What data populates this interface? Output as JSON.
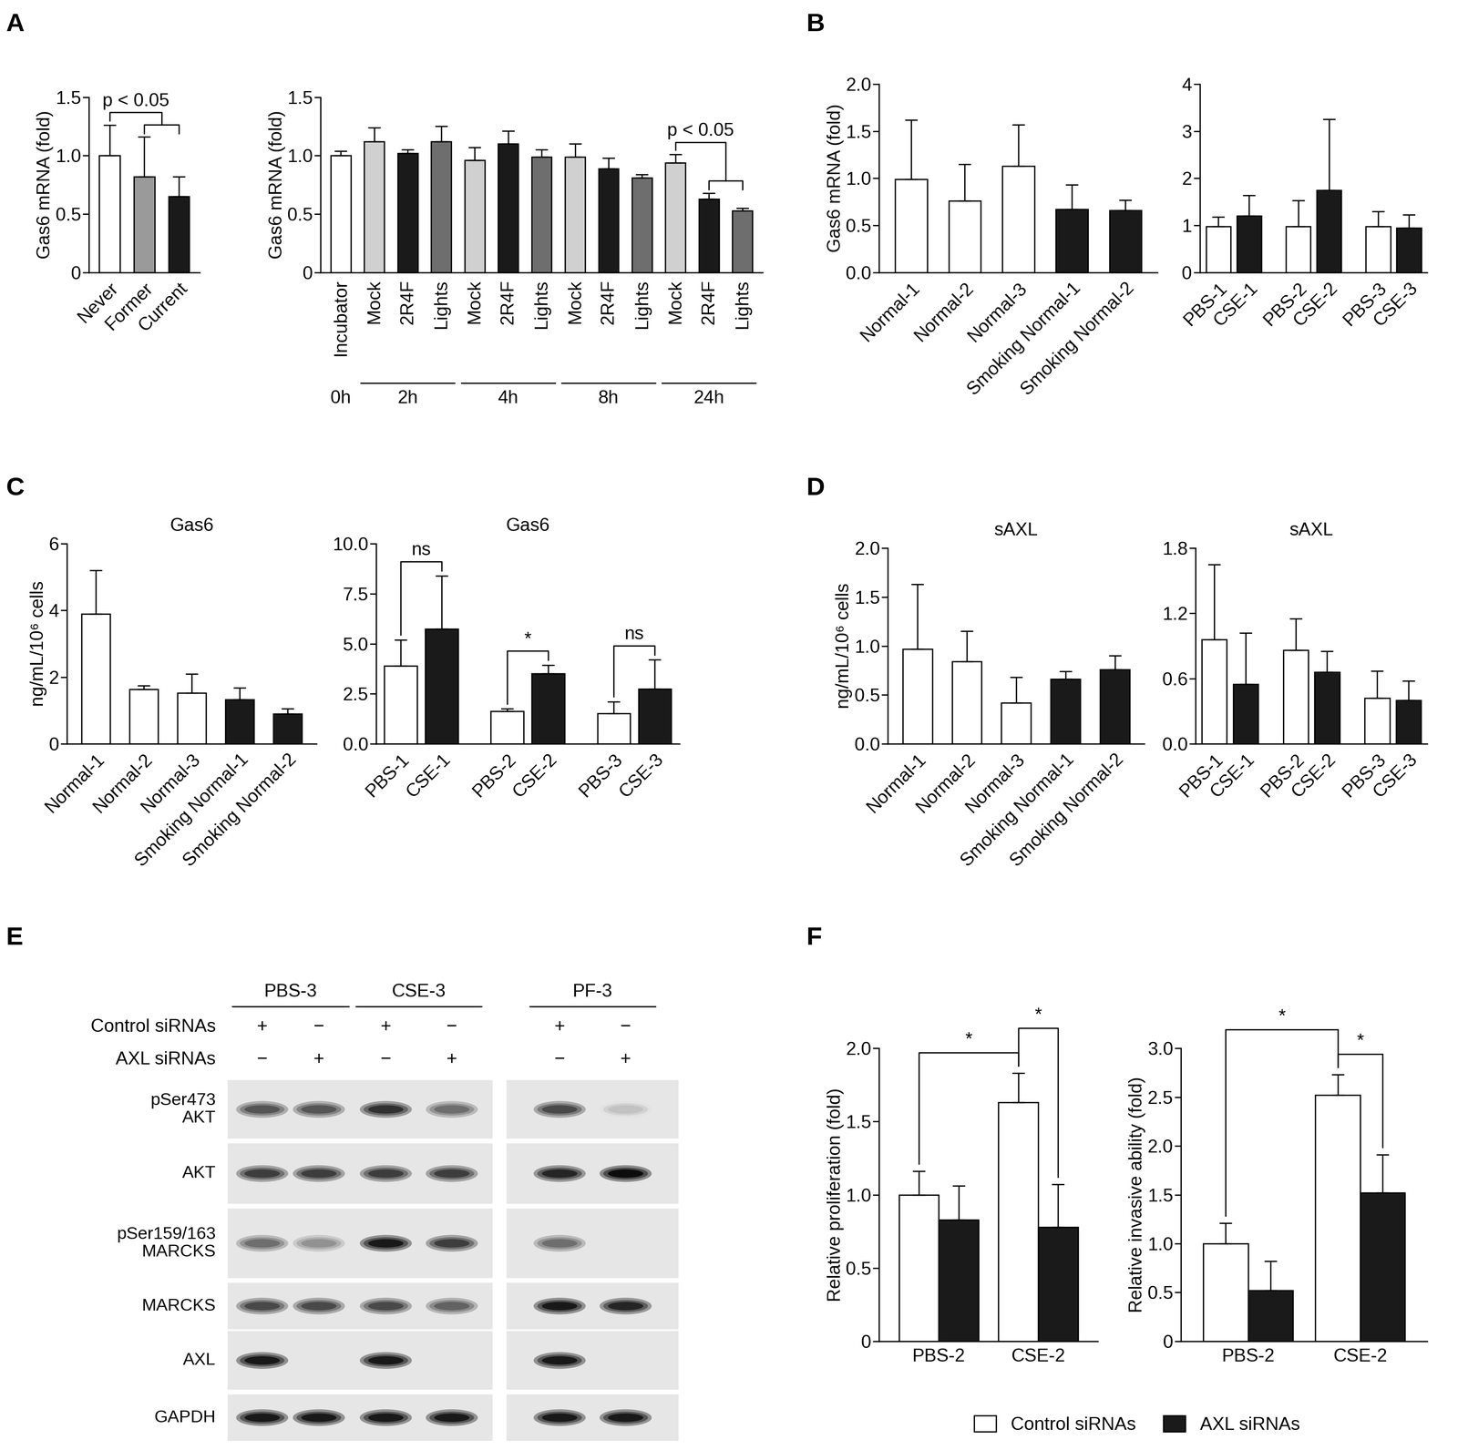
{
  "chart_data": [
    {
      "panel_label": "A",
      "type": "bar",
      "ylabel": "Gas6 mRNA (fold)",
      "categories": [
        "Never",
        "Former",
        "Current"
      ],
      "values": [
        1.0,
        0.82,
        0.65
      ],
      "errors": [
        0.26,
        0.34,
        0.17
      ],
      "colors": [
        "#ffffff",
        "#9a9a9a",
        "#1a1a1a"
      ],
      "ylim": [
        0,
        1.5
      ],
      "yticks": [
        0,
        0.5,
        {
          "value": 1,
          "label": "1.0"
        },
        1.5
      ],
      "comparisons": [
        {
          "text": "p < 0.05",
          "left": [
            0
          ],
          "right": [
            1,
            2
          ]
        }
      ]
    },
    {
      "type": "bar",
      "ylabel": "Gas6 mRNA (fold)",
      "categories": [
        "Incubator",
        "Mock",
        "2R4F",
        "Lights",
        "Mock",
        "2R4F",
        "Lights",
        "Mock",
        "2R4F",
        "Lights",
        "Mock",
        "2R4F",
        "Lights"
      ],
      "values": [
        1.0,
        1.12,
        1.02,
        1.12,
        0.96,
        1.1,
        0.99,
        0.99,
        0.89,
        0.81,
        0.94,
        0.63,
        0.53
      ],
      "errors": [
        0.04,
        0.12,
        0.03,
        0.13,
        0.11,
        0.11,
        0.06,
        0.11,
        0.09,
        0.03,
        0.07,
        0.05,
        0.02
      ],
      "colors": [
        "#ffffff",
        "#d0d0d0",
        "#1a1a1a",
        "#6e6e6e",
        "#d0d0d0",
        "#1a1a1a",
        "#6e6e6e",
        "#d0d0d0",
        "#1a1a1a",
        "#6e6e6e",
        "#d0d0d0",
        "#1a1a1a",
        "#6e6e6e"
      ],
      "groups": [
        {
          "label": "0h",
          "members": [
            0
          ]
        },
        {
          "label": "2h",
          "members": [
            1,
            2,
            3
          ]
        },
        {
          "label": "4h",
          "members": [
            4,
            5,
            6
          ]
        },
        {
          "label": "8h",
          "members": [
            7,
            8,
            9
          ]
        },
        {
          "label": "24h",
          "members": [
            10,
            11,
            12
          ]
        }
      ],
      "ylim": [
        0,
        1.5
      ],
      "yticks": [
        0,
        0.5,
        {
          "value": 1,
          "label": "1.0"
        },
        1.5
      ],
      "comparisons": [
        {
          "text": "p < 0.05",
          "left": [
            10
          ],
          "right": [
            11,
            12
          ]
        }
      ]
    },
    {
      "panel_label": "B",
      "type": "bar",
      "ylabel": "Gas6 mRNA (fold)",
      "categories": [
        "Normal-1",
        "Normal-2",
        "Normal-3",
        "Smoking Normal-1",
        "Smoking Normal-2"
      ],
      "values": [
        0.99,
        0.76,
        1.13,
        0.67,
        0.66
      ],
      "errors": [
        0.63,
        0.39,
        0.44,
        0.26,
        0.11
      ],
      "colors": [
        "#ffffff",
        "#ffffff",
        "#ffffff",
        "#1a1a1a",
        "#1a1a1a"
      ],
      "ylim": [
        0,
        2
      ],
      "yticks": [
        {
          "value": 0,
          "label": "0.0"
        },
        0.5,
        {
          "value": 1,
          "label": "1.0"
        },
        1.5,
        {
          "value": 2,
          "label": "2.0"
        }
      ]
    },
    {
      "type": "bar",
      "categories": [
        "PBS-1",
        "CSE-1",
        "PBS-2",
        "CSE-2",
        "PBS-3",
        "CSE-3"
      ],
      "values": [
        0.98,
        1.2,
        0.98,
        1.75,
        0.98,
        0.95
      ],
      "errors": [
        0.2,
        0.44,
        0.55,
        1.5,
        0.32,
        0.28
      ],
      "colors": [
        "#ffffff",
        "#1a1a1a",
        "#ffffff",
        "#1a1a1a",
        "#ffffff",
        "#1a1a1a"
      ],
      "ylim": [
        0,
        4
      ],
      "yticks": [
        0,
        1,
        2,
        3,
        4
      ]
    },
    {
      "panel_label": "C",
      "type": "bar",
      "title": "Gas6",
      "ylabel": "ng/mL/10⁶ cells",
      "categories": [
        "Normal-1",
        "Normal-2",
        "Normal-3",
        "Smoking Normal-1",
        "Smoking Normal-2"
      ],
      "values": [
        3.9,
        1.63,
        1.52,
        1.33,
        0.9
      ],
      "errors": [
        1.3,
        0.12,
        0.58,
        0.35,
        0.15
      ],
      "colors": [
        "#ffffff",
        "#ffffff",
        "#ffffff",
        "#1a1a1a",
        "#1a1a1a"
      ],
      "ylim": [
        0,
        6
      ],
      "yticks": [
        0,
        2,
        4,
        6
      ]
    },
    {
      "type": "bar",
      "title": "Gas6",
      "categories": [
        "PBS-1",
        "CSE-1",
        "PBS-2",
        "CSE-2",
        "PBS-3",
        "CSE-3"
      ],
      "values": [
        3.9,
        5.75,
        1.63,
        3.52,
        1.52,
        2.75
      ],
      "errors": [
        1.3,
        2.65,
        0.12,
        0.42,
        0.58,
        1.45
      ],
      "colors": [
        "#ffffff",
        "#1a1a1a",
        "#ffffff",
        "#1a1a1a",
        "#ffffff",
        "#1a1a1a"
      ],
      "ylim": [
        0,
        10
      ],
      "yticks": [
        {
          "value": 0,
          "label": "0.0"
        },
        2.5,
        {
          "value": 5,
          "label": "5.0"
        },
        7.5,
        {
          "value": 10,
          "label": "10.0"
        }
      ],
      "comparisons": [
        {
          "text": "ns",
          "left": [
            0
          ],
          "right": [
            1
          ]
        },
        {
          "text": "*",
          "left": [
            2
          ],
          "right": [
            3
          ]
        },
        {
          "text": "ns",
          "left": [
            4
          ],
          "right": [
            5
          ]
        }
      ]
    },
    {
      "panel_label": "D",
      "type": "bar",
      "title": "sAXL",
      "ylabel": "ng/mL/10⁶ cells",
      "categories": [
        "Normal-1",
        "Normal-2",
        "Normal-3",
        "Smoking Normal-1",
        "Smoking Normal-2"
      ],
      "values": [
        0.97,
        0.84,
        0.42,
        0.66,
        0.76
      ],
      "errors": [
        0.66,
        0.31,
        0.26,
        0.08,
        0.14
      ],
      "colors": [
        "#ffffff",
        "#ffffff",
        "#ffffff",
        "#1a1a1a",
        "#1a1a1a"
      ],
      "ylim": [
        0,
        2
      ],
      "yticks": [
        {
          "value": 0,
          "label": "0.0"
        },
        0.5,
        {
          "value": 1,
          "label": "1.0"
        },
        1.5,
        {
          "value": 2,
          "label": "2.0"
        }
      ]
    },
    {
      "type": "bar",
      "title": "sAXL",
      "categories": [
        "PBS-1",
        "CSE-1",
        "PBS-2",
        "CSE-2",
        "PBS-3",
        "CSE-3"
      ],
      "values": [
        0.96,
        0.55,
        0.86,
        0.66,
        0.42,
        0.4
      ],
      "errors": [
        0.69,
        0.47,
        0.29,
        0.19,
        0.25,
        0.18
      ],
      "colors": [
        "#ffffff",
        "#1a1a1a",
        "#ffffff",
        "#1a1a1a",
        "#ffffff",
        "#1a1a1a"
      ],
      "ylim": [
        0,
        1.8
      ],
      "yticks": [
        {
          "value": 0,
          "label": "0.0"
        },
        0.6,
        1.2,
        1.8
      ]
    },
    {
      "panel_label": "F",
      "type": "bar",
      "ylabel": "Relative proliferation (fold)",
      "categories": [
        "PBS-2",
        "CSE-2"
      ],
      "series": [
        {
          "name": "Control siRNAs",
          "color": "#ffffff",
          "values": [
            1.0,
            1.63
          ],
          "errors": [
            0.16,
            0.2
          ]
        },
        {
          "name": "AXL siRNAs",
          "color": "#1a1a1a",
          "values": [
            0.83,
            0.78
          ],
          "errors": [
            0.23,
            0.29
          ]
        }
      ],
      "ylim": [
        0,
        2
      ],
      "yticks": [
        0,
        0.5,
        {
          "value": 1,
          "label": "1.0"
        },
        1.5,
        {
          "value": 2,
          "label": "2.0"
        }
      ],
      "comparisons": [
        {
          "text": "*",
          "left": [
            {
              "series": 0,
              "category": 0
            }
          ],
          "right": [
            {
              "series": 0,
              "category": 1
            }
          ]
        },
        {
          "text": "*",
          "left": [
            {
              "series": 0,
              "category": 1
            }
          ],
          "right": [
            {
              "series": 1,
              "category": 1
            }
          ]
        }
      ]
    },
    {
      "type": "bar",
      "ylabel": "Relative invasive ability (fold)",
      "categories": [
        "PBS-2",
        "CSE-2"
      ],
      "series": [
        {
          "name": "Control siRNAs",
          "color": "#ffffff",
          "values": [
            1.0,
            2.52
          ],
          "errors": [
            0.21,
            0.21
          ]
        },
        {
          "name": "AXL siRNAs",
          "color": "#1a1a1a",
          "values": [
            0.52,
            1.52
          ],
          "errors": [
            0.3,
            0.39
          ]
        }
      ],
      "ylim": [
        0,
        3
      ],
      "yticks": [
        0,
        0.5,
        {
          "value": 1,
          "label": "1.0"
        },
        1.5,
        {
          "value": 2,
          "label": "2.0"
        },
        2.5,
        {
          "value": 3,
          "label": "3.0"
        }
      ],
      "legend": "lower center",
      "comparisons": [
        {
          "text": "*",
          "left": [
            {
              "series": 0,
              "category": 1
            }
          ],
          "right": [
            {
              "series": 1,
              "category": 1
            }
          ]
        },
        {
          "text": "*",
          "left": [
            {
              "series": 0,
              "category": 0
            }
          ],
          "right": [
            {
              "series": 0,
              "category": 1
            }
          ]
        }
      ]
    }
  ],
  "blot": {
    "panel_label": "E",
    "groups": [
      {
        "label": "PBS-3",
        "lanes": [
          0,
          1
        ]
      },
      {
        "label": "CSE-3",
        "lanes": [
          2,
          3
        ]
      },
      {
        "label": "PF-3",
        "lanes": [
          4,
          5
        ]
      }
    ],
    "conditions": [
      {
        "label": "Control siRNAs",
        "signs": [
          "+",
          "−",
          "+",
          "−",
          "+",
          "−"
        ]
      },
      {
        "label": "AXL siRNAs",
        "signs": [
          "−",
          "+",
          "−",
          "+",
          "−",
          "+"
        ]
      }
    ],
    "rows": [
      {
        "label": "pSer473\nAKT",
        "intensity": [
          0.7,
          0.7,
          0.85,
          0.6,
          0.75,
          0.25
        ]
      },
      {
        "label": "AKT",
        "intensity": [
          0.8,
          0.8,
          0.8,
          0.8,
          0.9,
          1.0
        ]
      },
      {
        "label": "pSer159/163\nMARCKS",
        "intensity": [
          0.6,
          0.45,
          0.95,
          0.8,
          0.6,
          0.0
        ]
      },
      {
        "label": "MARCKS",
        "intensity": [
          0.75,
          0.75,
          0.75,
          0.65,
          0.95,
          0.9
        ]
      },
      {
        "label": "AXL",
        "intensity": [
          0.95,
          0.0,
          0.95,
          0.0,
          0.95,
          0.0
        ]
      },
      {
        "label": "GAPDH",
        "intensity": [
          0.95,
          0.95,
          0.95,
          0.95,
          0.95,
          0.95
        ]
      }
    ]
  }
}
